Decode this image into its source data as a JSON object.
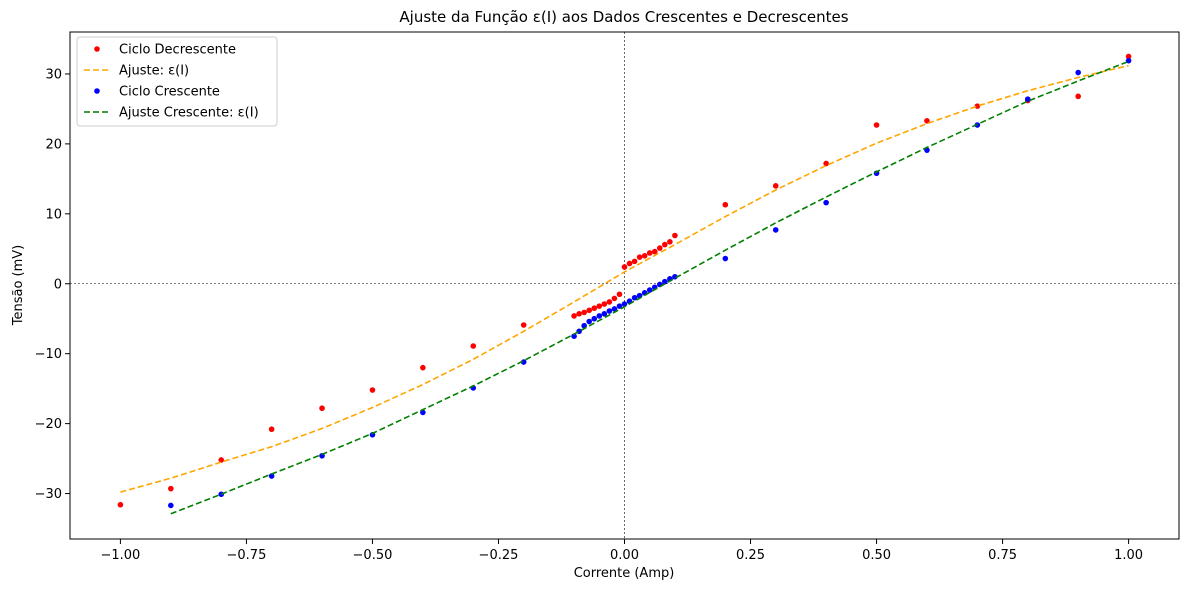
{
  "chart_data": {
    "type": "scatter",
    "title": "Ajuste da Função ε(I) aos Dados Crescentes e Decrescentes",
    "xlabel": "Corrente (Amp)",
    "ylabel": "Tensão (mV)",
    "xlim": [
      -1.1,
      1.1
    ],
    "ylim": [
      -36.5,
      36
    ],
    "xticks": [
      -1.0,
      -0.75,
      -0.5,
      -0.25,
      0.0,
      0.25,
      0.5,
      0.75,
      1.0
    ],
    "xtick_labels": [
      "−1.00",
      "−0.75",
      "−0.50",
      "−0.25",
      "0.00",
      "0.25",
      "0.50",
      "0.75",
      "1.00"
    ],
    "yticks": [
      -30,
      -20,
      -10,
      0,
      10,
      20,
      30
    ],
    "ytick_labels": [
      "−30",
      "−20",
      "−10",
      "0",
      "10",
      "20",
      "30"
    ],
    "grid": false,
    "reference_lines": [
      "x = 0",
      "y = 0"
    ],
    "legend_position": "top-left",
    "series": [
      {
        "name": "Ciclo Decrescente",
        "kind": "scatter",
        "color": "#ff0000",
        "x": [
          -1.0,
          -0.9,
          -0.8,
          -0.7,
          -0.6,
          -0.5,
          -0.4,
          -0.3,
          -0.2,
          -0.1,
          -0.09,
          -0.08,
          -0.07,
          -0.06,
          -0.05,
          -0.04,
          -0.03,
          -0.02,
          -0.01,
          0.0,
          0.01,
          0.02,
          0.03,
          0.04,
          0.05,
          0.06,
          0.07,
          0.08,
          0.09,
          0.1,
          0.2,
          0.3,
          0.4,
          0.5,
          0.6,
          0.7,
          0.8,
          0.9,
          1.0
        ],
        "y": [
          -31.6,
          -29.3,
          -25.2,
          -20.8,
          -17.8,
          -15.2,
          -12.0,
          -8.9,
          -5.9,
          -4.6,
          -4.3,
          -4.1,
          -3.8,
          -3.5,
          -3.2,
          -2.9,
          -2.6,
          -2.1,
          -1.5,
          2.4,
          2.9,
          3.2,
          3.8,
          4.0,
          4.4,
          4.6,
          5.1,
          5.6,
          6.0,
          6.9,
          11.3,
          14.0,
          17.2,
          22.7,
          23.3,
          25.4,
          26.2,
          26.8,
          32.5
        ]
      },
      {
        "name": "Ajuste: ε(I)",
        "kind": "line",
        "style": "dashed",
        "color": "#ffa500",
        "x": [
          -1.0,
          -0.9,
          -0.8,
          -0.7,
          -0.6,
          -0.5,
          -0.4,
          -0.3,
          -0.2,
          -0.1,
          0.0,
          0.1,
          0.2,
          0.3,
          0.4,
          0.5,
          0.6,
          0.7,
          0.8,
          0.9,
          1.0
        ],
        "y": [
          -29.8,
          -27.8,
          -25.5,
          -23.3,
          -20.7,
          -17.7,
          -14.4,
          -10.8,
          -6.8,
          -2.6,
          1.7,
          5.6,
          9.6,
          13.4,
          16.9,
          20.1,
          22.9,
          25.4,
          27.6,
          29.5,
          31.2
        ]
      },
      {
        "name": "Ciclo Crescente",
        "kind": "scatter",
        "color": "#0000ff",
        "x": [
          -0.9,
          -0.8,
          -0.7,
          -0.6,
          -0.5,
          -0.4,
          -0.3,
          -0.2,
          -0.1,
          -0.09,
          -0.08,
          -0.07,
          -0.06,
          -0.05,
          -0.04,
          -0.03,
          -0.02,
          -0.01,
          0.0,
          0.01,
          0.02,
          0.03,
          0.04,
          0.05,
          0.06,
          0.07,
          0.08,
          0.09,
          0.1,
          0.2,
          0.3,
          0.4,
          0.5,
          0.6,
          0.7,
          0.8,
          0.9,
          1.0
        ],
        "y": [
          -31.7,
          -30.1,
          -27.5,
          -24.6,
          -21.6,
          -18.4,
          -14.9,
          -11.2,
          -7.5,
          -6.8,
          -6.0,
          -5.4,
          -5.0,
          -4.6,
          -4.3,
          -3.9,
          -3.6,
          -3.2,
          -2.9,
          -2.5,
          -2.0,
          -1.7,
          -1.3,
          -0.9,
          -0.5,
          -0.1,
          0.3,
          0.7,
          1.0,
          3.6,
          7.7,
          11.6,
          15.8,
          19.1,
          22.7,
          26.4,
          30.2,
          31.9
        ]
      },
      {
        "name": "Ajuste Crescente: ε(I)",
        "kind": "line",
        "style": "dashed",
        "color": "#008000",
        "x": [
          -0.9,
          -0.8,
          -0.7,
          -0.6,
          -0.5,
          -0.4,
          -0.3,
          -0.2,
          -0.1,
          0.0,
          0.1,
          0.2,
          0.3,
          0.4,
          0.5,
          0.6,
          0.7,
          0.8,
          0.9,
          1.0
        ],
        "y": [
          -32.9,
          -30.1,
          -27.2,
          -24.4,
          -21.4,
          -18.0,
          -14.6,
          -11.0,
          -7.2,
          -3.3,
          0.8,
          4.8,
          8.7,
          12.4,
          16.0,
          19.5,
          22.8,
          26.1,
          29.0,
          31.8
        ]
      }
    ]
  }
}
